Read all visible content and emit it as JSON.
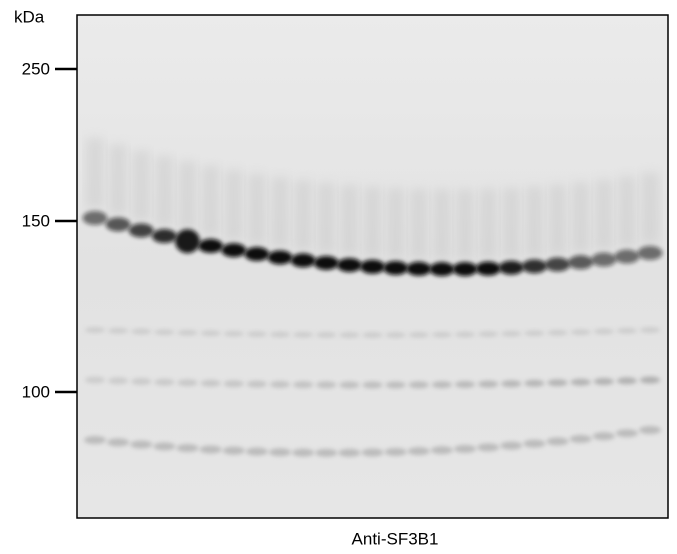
{
  "unit": "kDa",
  "markers": [
    {
      "label": "250"
    },
    {
      "label": "150"
    },
    {
      "label": "100"
    }
  ],
  "caption": "Anti-SF3B1"
}
